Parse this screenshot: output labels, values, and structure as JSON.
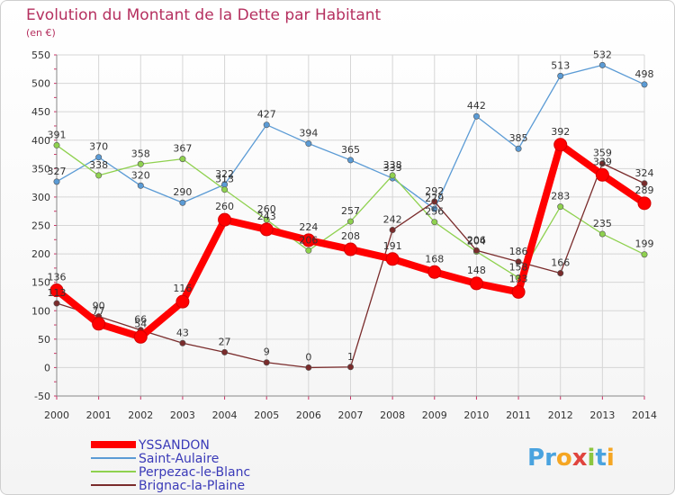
{
  "chart_data": {
    "type": "line",
    "title": "Evolution du Montant de la Dette par Habitant",
    "subtitle": "(en €)",
    "x": [
      "2000",
      "2001",
      "2002",
      "2003",
      "2004",
      "2005",
      "2006",
      "2007",
      "2008",
      "2009",
      "2010",
      "2011",
      "2012",
      "2013",
      "2014"
    ],
    "ylim": [
      -50,
      550
    ],
    "yticks": [
      -50,
      0,
      50,
      100,
      150,
      200,
      250,
      300,
      350,
      400,
      450,
      500,
      550
    ],
    "grid": true,
    "legend_position": "bottom-left",
    "series": [
      {
        "name": "YSSANDON",
        "color": "#ff0000",
        "values": [
          136,
          77,
          54,
          116,
          260,
          243,
          224,
          208,
          191,
          168,
          148,
          133,
          392,
          339,
          289
        ],
        "emphasis": true
      },
      {
        "name": "Saint-Aulaire",
        "color": "#5b9bd5",
        "values": [
          327,
          370,
          320,
          290,
          322,
          427,
          394,
          365,
          333,
          279,
          442,
          385,
          513,
          532,
          498
        ]
      },
      {
        "name": "Perpezac-le-Blanc",
        "color": "#8fd14f",
        "values": [
          391,
          338,
          358,
          367,
          313,
          260,
          206,
          257,
          338,
          256,
          204,
          158,
          283,
          235,
          199
        ]
      },
      {
        "name": "Brignac-la-Plaine",
        "color": "#7a2c2c",
        "values": [
          113,
          90,
          66,
          43,
          27,
          9,
          0,
          1,
          242,
          292,
          206,
          186,
          166,
          359,
          324
        ]
      }
    ]
  },
  "logo": {
    "text": "Proxiti"
  }
}
